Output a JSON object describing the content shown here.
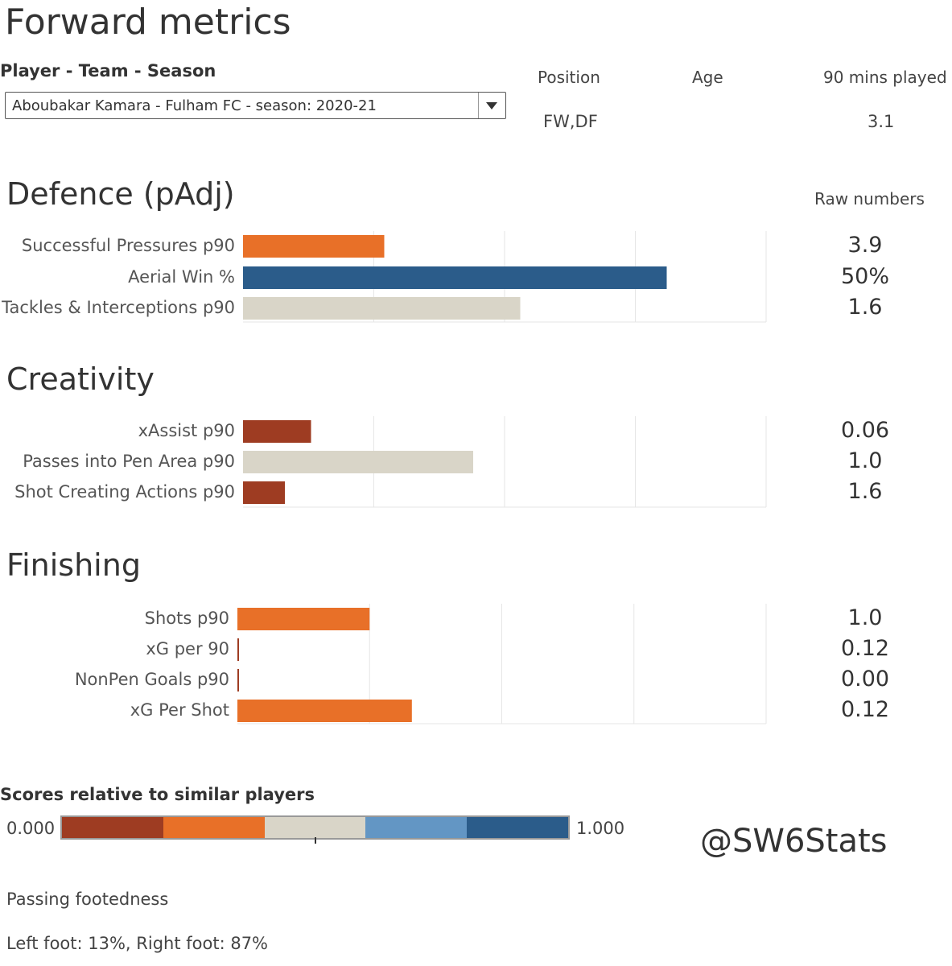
{
  "title": "Forward metrics",
  "selector": {
    "label": "Player - Team - Season",
    "value": "Aboubakar Kamara - Fulham FC - season: 2020-21"
  },
  "info": {
    "position_label": "Position",
    "position_value": "FW,DF",
    "age_label": "Age",
    "age_value": "",
    "mins_label": "90 mins played",
    "mins_value": "3.1"
  },
  "raw_header": "Raw numbers",
  "chart_data": {
    "type": "bar",
    "orientation": "horizontal",
    "xlim": [
      0,
      1
    ],
    "grid": true,
    "sections": [
      {
        "title": "Defence (pAdj)",
        "metrics": [
          {
            "label": "Successful Pressures p90",
            "score": 0.27,
            "raw": "3.9",
            "color": "#E87028"
          },
          {
            "label": "Aerial Win %",
            "score": 0.81,
            "raw": "50%",
            "color": "#2B5C8A"
          },
          {
            "label": "Tackles & Interceptions p90",
            "score": 0.53,
            "raw": "1.6",
            "color": "#D9D5C8"
          }
        ]
      },
      {
        "title": "Creativity",
        "metrics": [
          {
            "label": "xAssist p90",
            "score": 0.13,
            "raw": "0.06",
            "color": "#9E3C22"
          },
          {
            "label": "Passes into Pen Area p90",
            "score": 0.44,
            "raw": "1.0",
            "color": "#D9D5C8"
          },
          {
            "label": "Shot Creating Actions p90",
            "score": 0.08,
            "raw": "1.6",
            "color": "#9E3C22"
          }
        ]
      },
      {
        "title": "Finishing",
        "metrics": [
          {
            "label": "Shots p90",
            "score": 0.25,
            "raw": "1.0",
            "color": "#E87028"
          },
          {
            "label": "xG per 90",
            "score": 0.0,
            "raw": "0.12",
            "color": "#9E3C22"
          },
          {
            "label": "NonPen Goals p90",
            "score": 0.0,
            "raw": "0.00",
            "color": "#9E3C22"
          },
          {
            "label": "xG Per Shot",
            "score": 0.33,
            "raw": "0.12",
            "color": "#E87028"
          }
        ]
      }
    ]
  },
  "legend": {
    "title": "Scores relative to similar players",
    "min_label": "0.000",
    "max_label": "1.000",
    "colors": [
      "#9E3C22",
      "#E87028",
      "#D9D5C8",
      "#6396C4",
      "#2B5C8A"
    ]
  },
  "watermark": "@SW6Stats",
  "footedness": {
    "title": "Passing footedness",
    "value": "Left foot: 13%, Right foot: 87%"
  }
}
